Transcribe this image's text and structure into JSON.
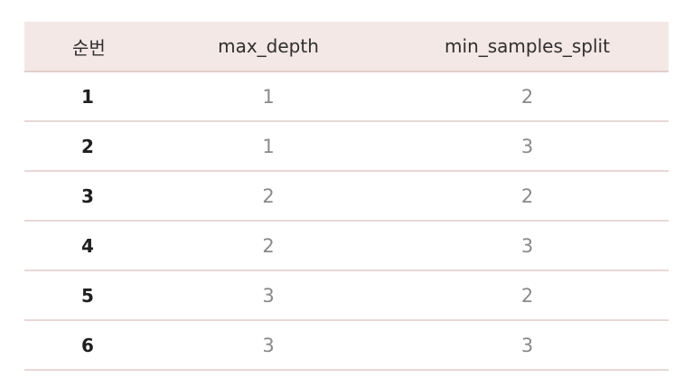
{
  "table": {
    "headers": [
      "순번",
      "max_depth",
      "min_samples_split"
    ],
    "rows": [
      [
        "1",
        "1",
        "2"
      ],
      [
        "2",
        "1",
        "3"
      ],
      [
        "3",
        "2",
        "2"
      ],
      [
        "4",
        "2",
        "3"
      ],
      [
        "5",
        "3",
        "2"
      ],
      [
        "6",
        "3",
        "3"
      ]
    ]
  },
  "colors": {
    "header_background": "#f3e8e6",
    "row_divider": "#e8d8d6",
    "index_text": "#1f1f1f",
    "value_text": "#8a8a8a"
  }
}
